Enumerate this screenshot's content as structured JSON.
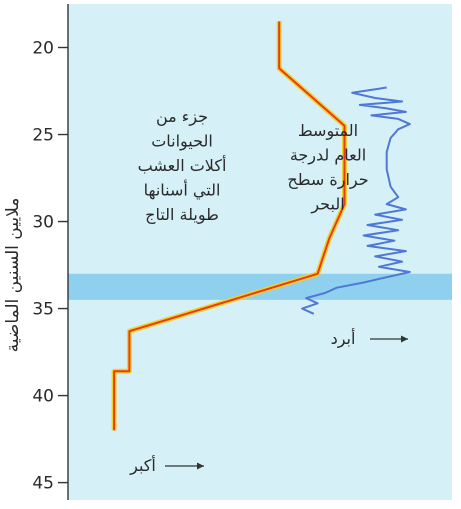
{
  "chart_data": {
    "type": "line",
    "ylabel": "ملايين السنين الماضية",
    "y_ticks": [
      20,
      25,
      30,
      35,
      40,
      45
    ],
    "ylim": [
      17.5,
      46
    ],
    "y_reversed": true,
    "highlight_band": {
      "from": 33,
      "to": 34.5,
      "color": "#8fd0ef"
    },
    "series": [
      {
        "name": "جزء من الحيوانات أكلات العشب التي أسنانها طويلة التاج",
        "label_lines": [
          "جزء من",
          "الحيوانات",
          "أكلات العشب",
          "التي أسنانها",
          "طويلة التاج"
        ],
        "axis_note": "أكبر",
        "color": "#e63b1c",
        "glow": "#f2d12a",
        "points": [
          {
            "y": 18.5,
            "v": 0.55
          },
          {
            "y": 21.2,
            "v": 0.55
          },
          {
            "y": 24.5,
            "v": 0.72
          },
          {
            "y": 29.0,
            "v": 0.72
          },
          {
            "y": 31.0,
            "v": 0.68
          },
          {
            "y": 33.0,
            "v": 0.65
          },
          {
            "y": 36.3,
            "v": 0.16
          },
          {
            "y": 38.6,
            "v": 0.16
          },
          {
            "y": 38.6,
            "v": 0.12
          },
          {
            "y": 42.0,
            "v": 0.12
          }
        ]
      },
      {
        "name": "المتوسط العام لدرجة حرارة سطح البحر",
        "label_lines": [
          "المتوسط",
          "العام لدرجة",
          "حرارة سطح",
          "البحر"
        ],
        "axis_note": "أبرد",
        "color": "#4f78d6",
        "points": [
          {
            "y": 22.3,
            "v": 0.83
          },
          {
            "y": 22.6,
            "v": 0.74
          },
          {
            "y": 22.9,
            "v": 0.8
          },
          {
            "y": 23.1,
            "v": 0.87
          },
          {
            "y": 23.3,
            "v": 0.76
          },
          {
            "y": 23.5,
            "v": 0.83
          },
          {
            "y": 23.7,
            "v": 0.88
          },
          {
            "y": 23.9,
            "v": 0.79
          },
          {
            "y": 24.1,
            "v": 0.86
          },
          {
            "y": 24.4,
            "v": 0.89
          },
          {
            "y": 24.7,
            "v": 0.86
          },
          {
            "y": 25.2,
            "v": 0.84
          },
          {
            "y": 26.0,
            "v": 0.83
          },
          {
            "y": 27.0,
            "v": 0.83
          },
          {
            "y": 28.0,
            "v": 0.84
          },
          {
            "y": 28.6,
            "v": 0.86
          },
          {
            "y": 29.0,
            "v": 0.83
          },
          {
            "y": 29.3,
            "v": 0.88
          },
          {
            "y": 29.6,
            "v": 0.8
          },
          {
            "y": 29.9,
            "v": 0.87
          },
          {
            "y": 30.2,
            "v": 0.78
          },
          {
            "y": 30.5,
            "v": 0.86
          },
          {
            "y": 30.8,
            "v": 0.77
          },
          {
            "y": 31.1,
            "v": 0.85
          },
          {
            "y": 31.4,
            "v": 0.78
          },
          {
            "y": 31.7,
            "v": 0.88
          },
          {
            "y": 32.0,
            "v": 0.8
          },
          {
            "y": 32.3,
            "v": 0.87
          },
          {
            "y": 32.6,
            "v": 0.81
          },
          {
            "y": 32.9,
            "v": 0.89
          },
          {
            "y": 33.2,
            "v": 0.83
          },
          {
            "y": 33.5,
            "v": 0.77
          },
          {
            "y": 33.8,
            "v": 0.7
          },
          {
            "y": 34.1,
            "v": 0.67
          },
          {
            "y": 34.4,
            "v": 0.62
          },
          {
            "y": 34.7,
            "v": 0.65
          },
          {
            "y": 35.0,
            "v": 0.61
          },
          {
            "y": 35.3,
            "v": 0.64
          }
        ]
      }
    ]
  }
}
